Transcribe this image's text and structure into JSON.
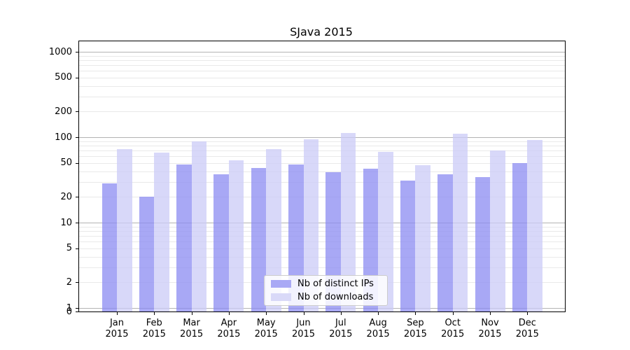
{
  "title": "SJava 2015",
  "chart_data": {
    "type": "bar",
    "title": "SJava 2015",
    "categories": [
      "Jan",
      "Feb",
      "Mar",
      "Apr",
      "May",
      "Jun",
      "Jul",
      "Aug",
      "Sep",
      "Oct",
      "Nov",
      "Dec"
    ],
    "year_label": "2015",
    "series": [
      {
        "name": "Nb of distinct IPs",
        "values": [
          29,
          20,
          48,
          37,
          44,
          48,
          39,
          43,
          31,
          37,
          34,
          50
        ],
        "bar_color": "#8b8bf2",
        "swatch_color": "#a9a9f5"
      },
      {
        "name": "Nb of downloads",
        "values": [
          72,
          66,
          89,
          54,
          72,
          95,
          113,
          67,
          47,
          111,
          70,
          92
        ],
        "bar_color": "#cbcbf7",
        "swatch_color": "#d9d9f8"
      }
    ],
    "bar_alpha": 0.75,
    "yscale": "log",
    "yticks": [
      1000,
      500,
      200,
      100,
      50,
      20,
      10,
      5,
      2,
      1,
      0
    ],
    "ylim_top": 1337,
    "grid": {
      "major_color": "#b3b3b3",
      "minor_color": "#e9e9e9",
      "major_at": [
        1,
        10,
        100,
        1000
      ]
    },
    "legend": {
      "position": "lower center"
    }
  }
}
